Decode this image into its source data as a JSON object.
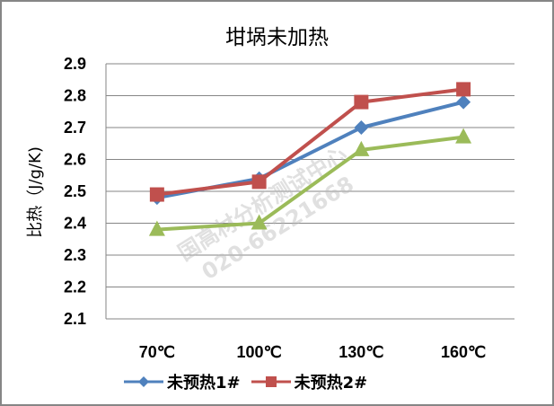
{
  "chart_data": {
    "type": "line",
    "title": "坩埚未加热",
    "xlabel": "",
    "ylabel": "比热（J/g/K)",
    "categories": [
      "70℃",
      "100℃",
      "130℃",
      "160℃"
    ],
    "ylim": [
      2.1,
      2.9
    ],
    "yticks": [
      "2.9",
      "2.8",
      "2.7",
      "2.6",
      "2.5",
      "2.4",
      "2.3",
      "2.2",
      "2.1"
    ],
    "grid": true,
    "legend_position": "bottom",
    "series": [
      {
        "name": "未预热1#",
        "color": "#4F81BD",
        "marker": "diamond",
        "values": [
          2.48,
          2.54,
          2.7,
          2.78
        ]
      },
      {
        "name": "未预热2#",
        "color": "#C0504D",
        "marker": "square",
        "values": [
          2.49,
          2.53,
          2.78,
          2.82
        ]
      },
      {
        "name": "",
        "color": "#9BBB59",
        "marker": "triangle",
        "values": [
          2.38,
          2.4,
          2.63,
          2.67
        ]
      }
    ]
  },
  "watermark": {
    "line1": "国高材分析测试中心",
    "line2": "020-66221668"
  },
  "legend": {
    "items": [
      {
        "label": "未预热1#",
        "color": "#4F81BD"
      },
      {
        "label": "未预热2#",
        "color": "#C0504D"
      }
    ]
  }
}
